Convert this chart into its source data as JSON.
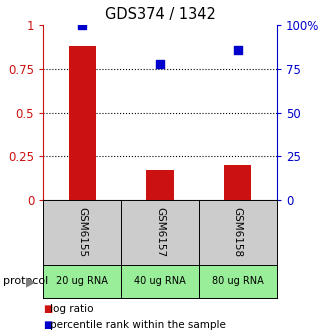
{
  "title": "GDS374 / 1342",
  "samples": [
    "GSM6155",
    "GSM6157",
    "GSM6158"
  ],
  "protocols": [
    "20 ug RNA",
    "40 ug RNA",
    "80 ug RNA"
  ],
  "log_ratios": [
    0.88,
    0.17,
    0.2
  ],
  "percentile_ranks": [
    1.0,
    0.78,
    0.86
  ],
  "bar_color": "#cc1111",
  "dot_color": "#0000cc",
  "left_yticks": [
    0,
    0.25,
    0.5,
    0.75,
    1.0
  ],
  "left_yticklabels": [
    "0",
    "0.25",
    "0.5",
    "0.75",
    "1"
  ],
  "right_yticks": [
    0,
    25,
    50,
    75,
    100
  ],
  "right_yticklabels": [
    "0",
    "25",
    "50",
    "75",
    "100%"
  ],
  "ylim": [
    0,
    1.0
  ],
  "gray_box_color": "#cccccc",
  "green_box_color": "#99ee99",
  "protocol_label": "protocol",
  "legend_items": [
    "log ratio",
    "percentile rank within the sample"
  ],
  "background_color": "#ffffff"
}
